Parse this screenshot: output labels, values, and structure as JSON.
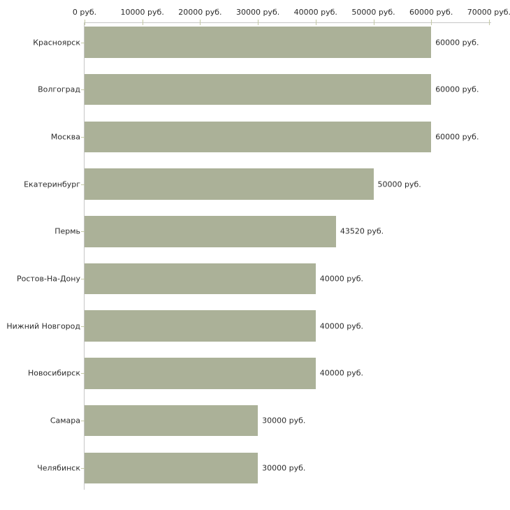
{
  "chart_data": {
    "type": "bar",
    "orientation": "horizontal",
    "title": "",
    "categories": [
      "Красноярск",
      "Волгоград",
      "Москва",
      "Екатеринбург",
      "Пермь",
      "Ростов-На-Дону",
      "Нижний Новгород",
      "Новосибирск",
      "Самара",
      "Челябинск"
    ],
    "values": [
      60000,
      60000,
      60000,
      50000,
      43520,
      40000,
      40000,
      40000,
      30000,
      30000
    ],
    "value_labels": [
      "60000 руб.",
      "60000 руб.",
      "60000 руб.",
      "50000 руб.",
      "43520 руб.",
      "40000 руб.",
      "40000 руб.",
      "40000 руб.",
      "30000 руб.",
      "30000 руб."
    ],
    "unit": "руб.",
    "x_axis": {
      "position": "top",
      "min": 0,
      "max": 70000,
      "ticks": [
        0,
        10000,
        20000,
        30000,
        40000,
        50000,
        60000,
        70000
      ],
      "tick_labels": [
        "0 руб.",
        "10000 руб.",
        "20000 руб.",
        "30000 руб.",
        "40000 руб.",
        "50000 руб.",
        "60000 руб.",
        "70000 руб."
      ]
    },
    "grid": false,
    "legend": false,
    "colors": {
      "bar": "#abb198",
      "axis_line": "#c6c6c6",
      "tick_mark": "#c3c8a4",
      "text": "#2b2b2b",
      "background": "#ffffff"
    }
  }
}
